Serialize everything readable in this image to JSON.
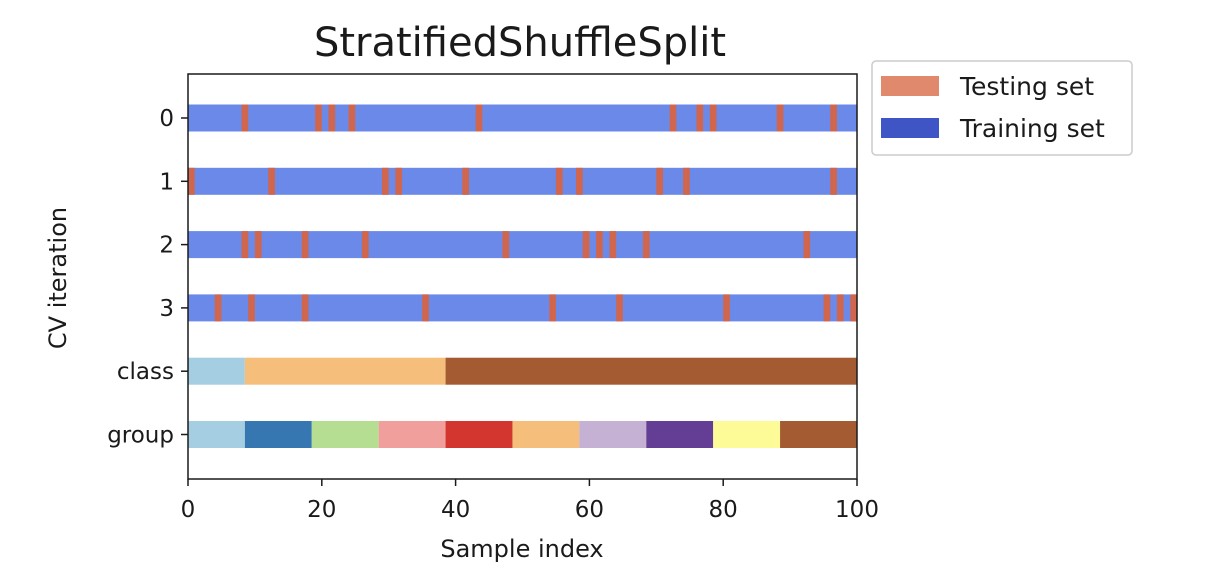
{
  "chart_data": {
    "type": "bar",
    "title": "StratifiedShuffleSplit",
    "xlabel": "Sample index",
    "ylabel": "CV iteration",
    "xlim": [
      0,
      100
    ],
    "xticks": [
      "0",
      "20",
      "40",
      "60",
      "80",
      "100"
    ],
    "yticklabels": [
      "0",
      "1",
      "2",
      "3",
      "class",
      "group"
    ],
    "n_samples": 100,
    "colors": {
      "training": "#6b89e8",
      "testing": "#cf664d",
      "legend_training": "#3f55c6",
      "legend_testing": "#e0896c"
    },
    "legend": {
      "position": "outside-top-right",
      "entries": [
        {
          "label": "Testing set",
          "color": "#e0896c"
        },
        {
          "label": "Training set",
          "color": "#3f55c6"
        }
      ]
    },
    "cv_iterations": [
      {
        "label": "0",
        "test_indices": [
          8,
          19,
          21,
          24,
          43,
          72,
          76,
          78,
          88,
          96
        ]
      },
      {
        "label": "1",
        "test_indices": [
          0,
          12,
          29,
          31,
          41,
          55,
          58,
          70,
          74,
          96
        ]
      },
      {
        "label": "2",
        "test_indices": [
          8,
          10,
          17,
          26,
          47,
          59,
          61,
          63,
          68,
          92
        ]
      },
      {
        "label": "3",
        "test_indices": [
          4,
          9,
          17,
          35,
          54,
          64,
          80,
          95,
          97,
          99
        ]
      }
    ],
    "class_segments": [
      {
        "start": 0,
        "end": 8.5,
        "color": "#a6cee3"
      },
      {
        "start": 8.5,
        "end": 38.5,
        "color": "#f5be7b"
      },
      {
        "start": 38.5,
        "end": 100,
        "color": "#a55b32"
      }
    ],
    "group_segments": [
      {
        "start": 0,
        "end": 8.5,
        "color": "#a6cee3"
      },
      {
        "start": 8.5,
        "end": 18.5,
        "color": "#3677b2"
      },
      {
        "start": 18.5,
        "end": 28.5,
        "color": "#b5de92"
      },
      {
        "start": 28.5,
        "end": 38.5,
        "color": "#f09f9c"
      },
      {
        "start": 38.5,
        "end": 48.5,
        "color": "#d3362e"
      },
      {
        "start": 48.5,
        "end": 58.5,
        "color": "#f5be7b"
      },
      {
        "start": 58.5,
        "end": 68.5,
        "color": "#c4b1d4"
      },
      {
        "start": 68.5,
        "end": 78.5,
        "color": "#643e94"
      },
      {
        "start": 78.5,
        "end": 88.5,
        "color": "#fdfa98"
      },
      {
        "start": 88.5,
        "end": 100,
        "color": "#a55b32"
      }
    ]
  }
}
